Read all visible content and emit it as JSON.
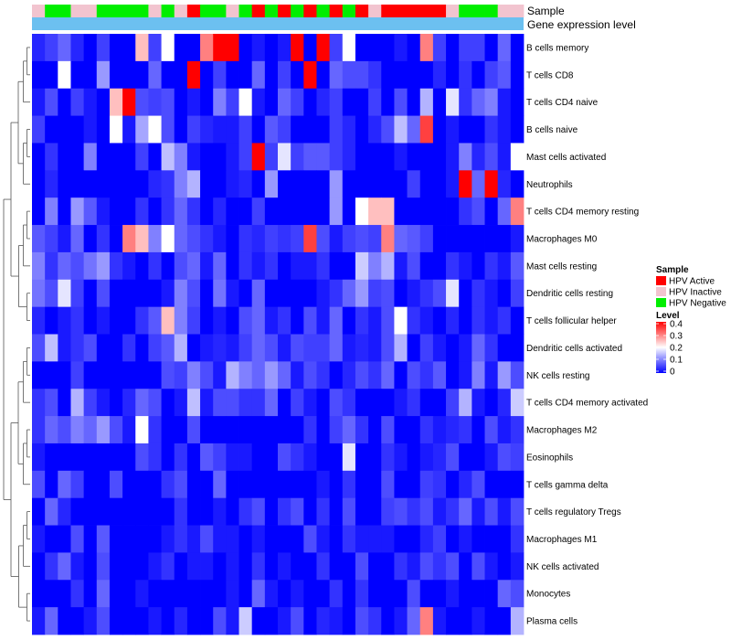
{
  "chart_data": {
    "type": "heatmap",
    "rows": [
      "B cells memory",
      "T cells CD8",
      "T cells CD4 naive",
      "B cells naive",
      "Mast cells activated",
      "Neutrophils",
      "T cells CD4 memory resting",
      "Macrophages M0",
      "Mast cells resting",
      "Dendritic cells resting",
      "T cells follicular helper",
      "Dendritic cells activated",
      "NK cells resting",
      "T cells CD4 memory activated",
      "Macrophages M2",
      "Eosinophils",
      "T cells gamma delta",
      "T cells regulatory  Tregs",
      "Macrophages M1",
      "NK cells activated",
      "Monocytes",
      "Plasma cells"
    ],
    "sample_groups": [
      "I",
      "N",
      "N",
      "I",
      "I",
      "N",
      "N",
      "N",
      "N",
      "I",
      "N",
      "I",
      "A",
      "N",
      "N",
      "I",
      "N",
      "A",
      "N",
      "A",
      "N",
      "A",
      "N",
      "A",
      "N",
      "A",
      "I",
      "A",
      "A",
      "A",
      "A",
      "A",
      "I",
      "N",
      "N",
      "N",
      "I",
      "I"
    ],
    "values": [
      [
        0.03,
        0.05,
        0.08,
        0.03,
        0,
        0.05,
        0,
        0,
        0.25,
        0.05,
        0.2,
        0,
        0,
        0.3,
        0.4,
        0.4,
        0,
        0.02,
        0,
        0.02,
        0.4,
        0,
        0.4,
        0.05,
        0.2,
        0,
        0,
        0,
        0.02,
        0,
        0.3,
        0.05,
        0,
        0.05,
        0.05,
        0,
        0.08,
        0
      ],
      [
        0,
        0,
        0.2,
        0,
        0,
        0.12,
        0,
        0,
        0,
        0.08,
        0,
        0,
        0.4,
        0,
        0.05,
        0,
        0,
        0.08,
        0,
        0.05,
        0,
        0.4,
        0,
        0.08,
        0.06,
        0.06,
        0.04,
        0,
        0,
        0,
        0,
        0.03,
        0,
        0.04,
        0,
        0.05,
        0.07,
        0
      ],
      [
        0.02,
        0.06,
        0,
        0.05,
        0.02,
        0,
        0.25,
        0.4,
        0.06,
        0.05,
        0.06,
        0,
        0.02,
        0,
        0.1,
        0.05,
        0.2,
        0.02,
        0,
        0.08,
        0.05,
        0,
        0.03,
        0.05,
        0,
        0,
        0.05,
        0,
        0.06,
        0,
        0.14,
        0,
        0.18,
        0.04,
        0.08,
        0.1,
        0.02,
        0
      ],
      [
        0.05,
        0,
        0,
        0,
        0.02,
        0,
        0.2,
        0.02,
        0.13,
        0.2,
        0.06,
        0,
        0.05,
        0.03,
        0.02,
        0.02,
        0.05,
        0,
        0.07,
        0.05,
        0,
        0,
        0,
        0.05,
        0.03,
        0,
        0.03,
        0.06,
        0.15,
        0.08,
        0.35,
        0,
        0.02,
        0,
        0,
        0.04,
        0.02,
        0
      ],
      [
        0,
        0.04,
        0,
        0,
        0.1,
        0,
        0,
        0,
        0.05,
        0,
        0.15,
        0.1,
        0.02,
        0,
        0,
        0.02,
        0.05,
        0.4,
        0.05,
        0.18,
        0.05,
        0.07,
        0.07,
        0.05,
        0.03,
        0,
        0,
        0,
        0.02,
        0,
        0,
        0,
        0.02,
        0.1,
        0.03,
        0.06,
        0.02,
        0.2
      ],
      [
        0,
        0.03,
        0,
        0,
        0,
        0,
        0,
        0,
        0,
        0.03,
        0.04,
        0.1,
        0.14,
        0,
        0,
        0.02,
        0.03,
        0,
        0.12,
        0,
        0,
        0,
        0,
        0.12,
        0,
        0,
        0,
        0,
        0,
        0.05,
        0,
        0,
        0.02,
        0.4,
        0.08,
        0.4,
        0.03,
        0
      ],
      [
        0,
        0.1,
        0,
        0.12,
        0.07,
        0.02,
        0,
        0,
        0.04,
        0,
        0.04,
        0.08,
        0.04,
        0,
        0.03,
        0,
        0,
        0.05,
        0,
        0,
        0,
        0,
        0,
        0.12,
        0,
        0.2,
        0.25,
        0.25,
        0,
        0,
        0,
        0,
        0,
        0.04,
        0.06,
        0,
        0.08,
        0.3
      ],
      [
        0.07,
        0.05,
        0.02,
        0.08,
        0,
        0.04,
        0,
        0.3,
        0.25,
        0.1,
        0.2,
        0.08,
        0.06,
        0.04,
        0.02,
        0,
        0.04,
        0.03,
        0.05,
        0.04,
        0.05,
        0.35,
        0.06,
        0.02,
        0.05,
        0.06,
        0.05,
        0.3,
        0.08,
        0.07,
        0.05,
        0,
        0,
        0,
        0,
        0,
        0,
        0.02
      ],
      [
        0.1,
        0.04,
        0.08,
        0.06,
        0.09,
        0.12,
        0.04,
        0.02,
        0,
        0.04,
        0,
        0.06,
        0.08,
        0.02,
        0.08,
        0,
        0.04,
        0.02,
        0.04,
        0,
        0.02,
        0.02,
        0.04,
        0,
        0,
        0.16,
        0.1,
        0.14,
        0.02,
        0.06,
        0,
        0,
        0.04,
        0.02,
        0,
        0.04,
        0.02,
        0.07
      ],
      [
        0.09,
        0.06,
        0.18,
        0.05,
        0,
        0.06,
        0,
        0,
        0,
        0,
        0.02,
        0.1,
        0.06,
        0,
        0.09,
        0.02,
        0,
        0.08,
        0,
        0,
        0,
        0,
        0.02,
        0.04,
        0.08,
        0.12,
        0.05,
        0.06,
        0,
        0.02,
        0.04,
        0.06,
        0.18,
        0,
        0.04,
        0.02,
        0,
        0.05
      ],
      [
        0.03,
        0,
        0.02,
        0.04,
        0,
        0.02,
        0,
        0,
        0.04,
        0.07,
        0.25,
        0.1,
        0.05,
        0,
        0.02,
        0,
        0.06,
        0.08,
        0.02,
        0.04,
        0,
        0.06,
        0.02,
        0.08,
        0,
        0.04,
        0.02,
        0.06,
        0.2,
        0.04,
        0.02,
        0,
        0.03,
        0,
        0.04,
        0.02,
        0.04,
        0
      ],
      [
        0.06,
        0.15,
        0.02,
        0.04,
        0.06,
        0,
        0,
        0.04,
        0,
        0.05,
        0.07,
        0.14,
        0,
        0.02,
        0.03,
        0.02,
        0.05,
        0.08,
        0.06,
        0.02,
        0.06,
        0.05,
        0.05,
        0.08,
        0.02,
        0.03,
        0.02,
        0.06,
        0.14,
        0,
        0.05,
        0.02,
        0,
        0.02,
        0.08,
        0.04,
        0,
        0
      ],
      [
        0,
        0,
        0,
        0.05,
        0,
        0,
        0,
        0,
        0,
        0,
        0.06,
        0.05,
        0.1,
        0.06,
        0.02,
        0.14,
        0.1,
        0.08,
        0.12,
        0.08,
        0.02,
        0.06,
        0.04,
        0,
        0.03,
        0.06,
        0.04,
        0.08,
        0,
        0.06,
        0.04,
        0.07,
        0,
        0.02,
        0.1,
        0.02,
        0.12,
        0.06
      ],
      [
        0.04,
        0.06,
        0,
        0.14,
        0.05,
        0.02,
        0,
        0.03,
        0.08,
        0.06,
        0,
        0.02,
        0.15,
        0.02,
        0.06,
        0.06,
        0.04,
        0.04,
        0.08,
        0,
        0.05,
        0.02,
        0,
        0.06,
        0.04,
        0,
        0,
        0,
        0.02,
        0.04,
        0,
        0,
        0.05,
        0.14,
        0.02,
        0,
        0.03,
        0.16
      ],
      [
        0.04,
        0.08,
        0.06,
        0.1,
        0.08,
        0.12,
        0.06,
        0.02,
        0.2,
        0.04,
        0,
        0,
        0.06,
        0,
        0,
        0,
        0,
        0,
        0,
        0,
        0,
        0.04,
        0,
        0.05,
        0.08,
        0.04,
        0,
        0.06,
        0,
        0,
        0.04,
        0.02,
        0.03,
        0.04,
        0,
        0.06,
        0.02,
        0.04
      ],
      [
        0.02,
        0,
        0,
        0,
        0,
        0,
        0,
        0,
        0.06,
        0.04,
        0,
        0.04,
        0,
        0.07,
        0.05,
        0.02,
        0.02,
        0,
        0,
        0.06,
        0.04,
        0.02,
        0,
        0,
        0.18,
        0,
        0,
        0.04,
        0.02,
        0,
        0.02,
        0.03,
        0.06,
        0,
        0,
        0.02,
        0.06,
        0.05
      ],
      [
        0.06,
        0,
        0.08,
        0.05,
        0,
        0,
        0.06,
        0,
        0,
        0,
        0.04,
        0.06,
        0,
        0,
        0.08,
        0,
        0,
        0,
        0,
        0,
        0,
        0,
        0.02,
        0,
        0.04,
        0,
        0,
        0.06,
        0,
        0,
        0.05,
        0.04,
        0,
        0.03,
        0.06,
        0,
        0,
        0
      ],
      [
        0,
        0.08,
        0.03,
        0,
        0,
        0,
        0,
        0,
        0,
        0,
        0,
        0.04,
        0,
        0,
        0.02,
        0,
        0.04,
        0.06,
        0,
        0.04,
        0.06,
        0,
        0.04,
        0,
        0.06,
        0,
        0,
        0.05,
        0.06,
        0.04,
        0.06,
        0.02,
        0.04,
        0.08,
        0.02,
        0.06,
        0.02,
        0.06
      ],
      [
        0.02,
        0,
        0,
        0.06,
        0,
        0.07,
        0,
        0,
        0,
        0,
        0.02,
        0.04,
        0.02,
        0.06,
        0.02,
        0.02,
        0,
        0.02,
        0,
        0,
        0,
        0.06,
        0.02,
        0,
        0.04,
        0.02,
        0.02,
        0.02,
        0,
        0,
        0.03,
        0.05,
        0,
        0.02,
        0,
        0,
        0,
        0.04
      ],
      [
        0,
        0.04,
        0.08,
        0.02,
        0,
        0.06,
        0,
        0,
        0,
        0.02,
        0.04,
        0,
        0.02,
        0.02,
        0,
        0.02,
        0,
        0.04,
        0,
        0.02,
        0,
        0,
        0.04,
        0,
        0,
        0.06,
        0,
        0,
        0.04,
        0.02,
        0.06,
        0.04,
        0.06,
        0,
        0.06,
        0.02,
        0,
        0.02
      ],
      [
        0,
        0,
        0,
        0.04,
        0,
        0.08,
        0,
        0,
        0.02,
        0,
        0,
        0,
        0,
        0,
        0,
        0.02,
        0,
        0.08,
        0.02,
        0,
        0.02,
        0,
        0,
        0.04,
        0,
        0.04,
        0,
        0,
        0,
        0.06,
        0,
        0,
        0.02,
        0,
        0,
        0,
        0.08,
        0.06
      ],
      [
        0.02,
        0.08,
        0,
        0,
        0.02,
        0.06,
        0,
        0,
        0,
        0.02,
        0,
        0.03,
        0,
        0,
        0.06,
        0.02,
        0.16,
        0,
        0,
        0.02,
        0.06,
        0,
        0.03,
        0.02,
        0,
        0.06,
        0.04,
        0,
        0.02,
        0.08,
        0.3,
        0.02,
        0,
        0,
        0.02,
        0,
        0,
        0.14
      ]
    ],
    "annotations": {
      "sample_label": "Sample",
      "expression_label": "Gene expression level"
    },
    "legend_sample": {
      "title": "Sample",
      "items": [
        {
          "key": "A",
          "label": "HPV Active",
          "color": "#ff0000"
        },
        {
          "key": "I",
          "label": "HPV Inactive",
          "color": "#f2c4cf"
        },
        {
          "key": "N",
          "label": "HPV Negative",
          "color": "#00ee00"
        }
      ]
    },
    "legend_level": {
      "title": "Level",
      "ticks": [
        "0.4",
        "0.3",
        "0.2",
        "0.1",
        "0"
      ],
      "range": [
        0,
        0.4
      ]
    },
    "colors": {
      "low": "#0000ff",
      "mid": "#ffffff",
      "high": "#ff0000",
      "expression_bar": "#6cc0f0"
    }
  }
}
